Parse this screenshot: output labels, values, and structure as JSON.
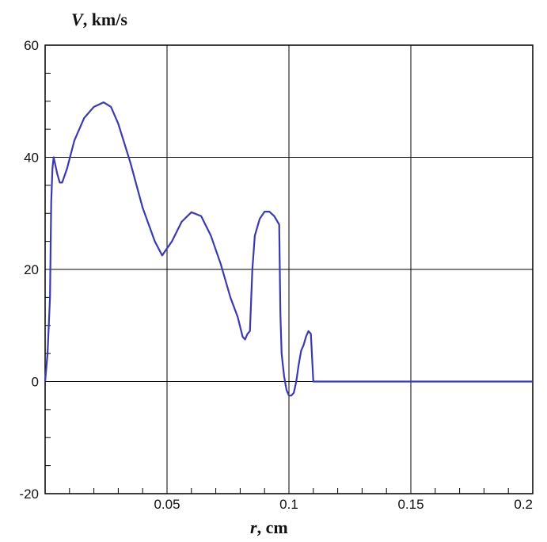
{
  "chart_data": {
    "type": "line",
    "title": "",
    "xlabel": {
      "var": "r",
      "unit": ", cm"
    },
    "ylabel": {
      "var": "V",
      "unit": ", km/s"
    },
    "xlim": [
      0,
      0.2
    ],
    "ylim": [
      -20,
      60
    ],
    "xticks": [
      0.05,
      0.1,
      0.15,
      0.2
    ],
    "xtick_labels": [
      "0.05",
      "0.1",
      "0.15",
      "0.2"
    ],
    "yticks": [
      -20,
      0,
      20,
      40,
      60
    ],
    "ytick_labels": [
      "-20",
      "0",
      "20",
      "40",
      "60"
    ],
    "grid": true,
    "legend": "none",
    "series": [
      {
        "color": "#3a3ab0",
        "x": [
          0,
          0.001,
          0.002,
          0.0025,
          0.003,
          0.0035,
          0.004,
          0.005,
          0.006,
          0.007,
          0.009,
          0.012,
          0.016,
          0.02,
          0.024,
          0.027,
          0.03,
          0.035,
          0.04,
          0.045,
          0.048,
          0.052,
          0.056,
          0.06,
          0.064,
          0.068,
          0.072,
          0.076,
          0.079,
          0.081,
          0.082,
          0.083,
          0.084,
          0.085,
          0.086,
          0.088,
          0.09,
          0.092,
          0.094,
          0.096,
          0.0965,
          0.097,
          0.098,
          0.099,
          0.1,
          0.101,
          0.102,
          0.103,
          0.104,
          0.105,
          0.106,
          0.107,
          0.108,
          0.109,
          0.11,
          0.111,
          0.12,
          0.15,
          0.2
        ],
        "y": [
          0,
          5,
          15,
          32,
          38,
          40,
          39,
          37,
          35.5,
          35.5,
          38,
          43,
          47,
          49,
          49.8,
          49,
          46,
          39,
          31,
          25,
          22.5,
          25,
          28.5,
          30.2,
          29.5,
          26,
          21,
          15,
          11.5,
          8,
          7.5,
          8.5,
          9,
          20,
          26,
          29,
          30.3,
          30.3,
          29.5,
          28,
          12,
          5,
          1,
          -1.5,
          -2.5,
          -2.5,
          -2,
          0,
          3,
          5.5,
          6.5,
          8,
          9,
          8.5,
          0,
          0,
          0,
          0,
          0
        ]
      }
    ]
  }
}
